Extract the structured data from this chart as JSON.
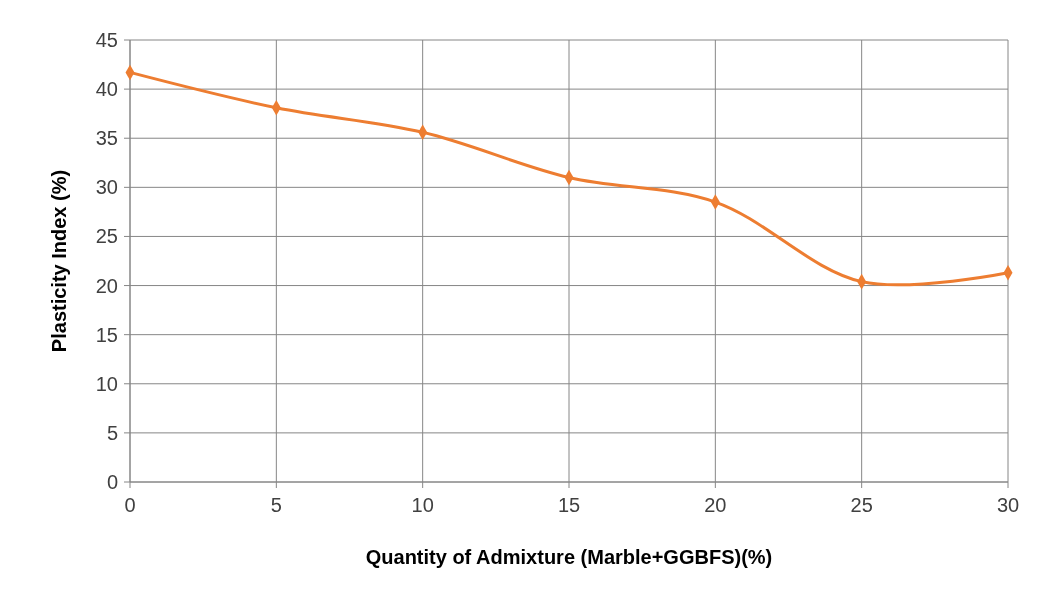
{
  "chart_data": {
    "type": "line",
    "xlabel": "Quantity of Admixture (Marble+GGBFS)(%)",
    "ylabel": "Plasticity Index (%)",
    "x": [
      0,
      5,
      10,
      15,
      20,
      25,
      30
    ],
    "series": [
      {
        "color": "#ed7d31",
        "values": [
          41.7,
          38.1,
          35.6,
          31.0,
          28.5,
          20.4,
          21.3
        ]
      }
    ],
    "xlim": [
      0,
      30
    ],
    "xticks": [
      0,
      5,
      10,
      15,
      20,
      25,
      30
    ],
    "ylim": [
      0,
      45
    ],
    "yticks": [
      0,
      5,
      10,
      15,
      20,
      25,
      30,
      35,
      40,
      45
    ],
    "grid": true,
    "marker": "diamond",
    "line_style": "solid"
  }
}
